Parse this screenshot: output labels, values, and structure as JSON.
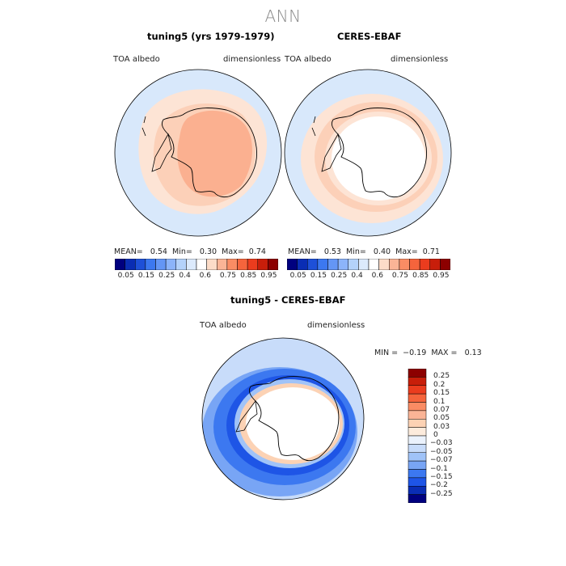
{
  "title": "ANN",
  "panels": [
    {
      "title": "tuning5 (yrs 1979-1979)",
      "variable": "TOA albedo",
      "units": "dimensionless",
      "stats": {
        "mean_label": "MEAN=",
        "mean": "0.54",
        "min_label": "Min=",
        "min": "0.30",
        "max_label": "Max=",
        "max": "0.74"
      }
    },
    {
      "title": "CERES-EBAF",
      "variable": "TOA albedo",
      "units": "dimensionless",
      "stats": {
        "mean_label": "MEAN=",
        "mean": "0.53",
        "min_label": "Min=",
        "min": "0.40",
        "max_label": "Max=",
        "max": "0.71"
      }
    },
    {
      "title": "tuning5 - CERES-EBAF",
      "variable": "TOA albedo",
      "units": "dimensionless",
      "stats": {
        "min_label": "MIN =",
        "min": "−0.19",
        "max_label": "MAX =",
        "max": "0.13"
      }
    }
  ],
  "colorbar_main": {
    "tick_labels": [
      "0.05",
      "0.15",
      "0.25",
      "0.4",
      "0.6",
      "0.75",
      "0.85",
      "0.95"
    ],
    "colors": [
      "#00007f",
      "#0a2db4",
      "#1e50d8",
      "#3c78f0",
      "#6496f5",
      "#8cb4fa",
      "#b4d2fa",
      "#dceafc",
      "#ffffff",
      "#fcdcc8",
      "#fab496",
      "#fa8c64",
      "#f5643c",
      "#eb3c1e",
      "#c81e0a",
      "#8c0000"
    ]
  },
  "colorbar_diff": {
    "labels": [
      "0.25",
      "0.2",
      "0.15",
      "0.1",
      "0.07",
      "0.05",
      "0.03",
      "0",
      "−0.03",
      "−0.05",
      "−0.07",
      "−0.1",
      "−0.15",
      "−0.2",
      "−0.25"
    ],
    "colors": [
      "#8c0000",
      "#c81e0a",
      "#eb3c1e",
      "#f5643c",
      "#fa8c64",
      "#fab496",
      "#fcd2b4",
      "#fcebdc",
      "#ebf2fc",
      "#c8dcfa",
      "#a0c3f8",
      "#78a5f5",
      "#3c78f0",
      "#1e55e6",
      "#0a2db4",
      "#00007f"
    ]
  },
  "chart_data": [
    {
      "type": "heatmap",
      "title": "tuning5 (yrs 1979-1979)",
      "variable": "TOA albedo",
      "units": "dimensionless",
      "projection": "south polar stereographic",
      "mean": 0.54,
      "min": 0.3,
      "max": 0.74,
      "contour_levels": [
        0.05,
        0.1,
        0.15,
        0.2,
        0.25,
        0.3,
        0.4,
        0.5,
        0.6,
        0.65,
        0.7,
        0.75,
        0.8,
        0.85,
        0.9,
        0.95
      ]
    },
    {
      "type": "heatmap",
      "title": "CERES-EBAF",
      "variable": "TOA albedo",
      "units": "dimensionless",
      "projection": "south polar stereographic",
      "mean": 0.53,
      "min": 0.4,
      "max": 0.71,
      "contour_levels": [
        0.05,
        0.1,
        0.15,
        0.2,
        0.25,
        0.3,
        0.4,
        0.5,
        0.6,
        0.65,
        0.7,
        0.75,
        0.8,
        0.85,
        0.9,
        0.95
      ]
    },
    {
      "type": "heatmap",
      "title": "tuning5 - CERES-EBAF",
      "variable": "TOA albedo",
      "units": "dimensionless",
      "projection": "south polar stereographic",
      "min": -0.19,
      "max": 0.13,
      "contour_levels": [
        -0.25,
        -0.2,
        -0.15,
        -0.1,
        -0.07,
        -0.05,
        -0.03,
        0,
        0.03,
        0.05,
        0.07,
        0.1,
        0.15,
        0.2,
        0.25
      ]
    }
  ]
}
